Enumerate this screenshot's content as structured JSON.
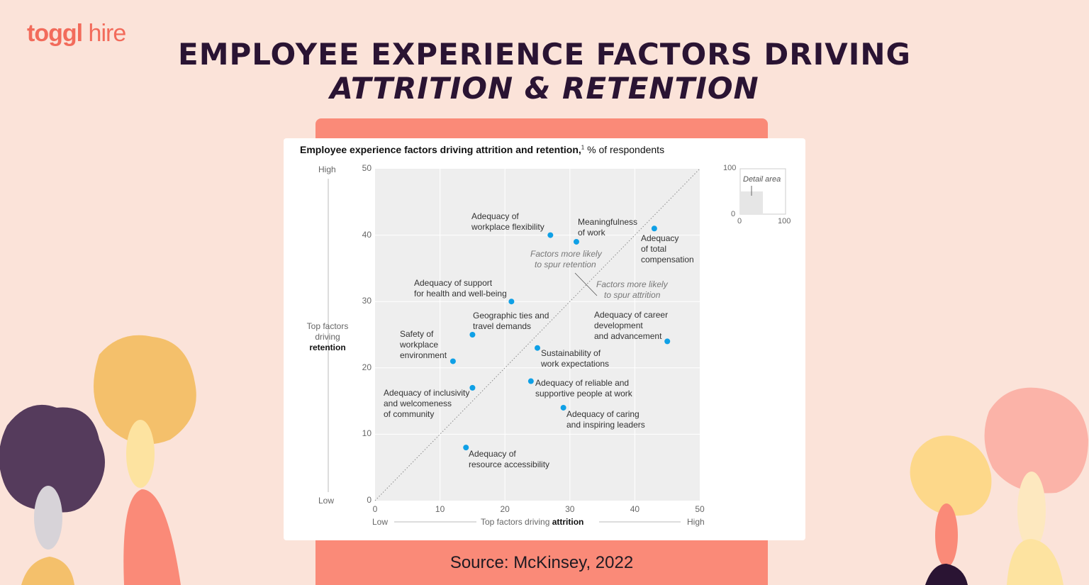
{
  "logo": {
    "brand": "toggl",
    "product": "hire",
    "color": "#f26b5b"
  },
  "title": {
    "line1": "EMPLOYEE EXPERIENCE FACTORS DRIVING",
    "line2": "ATTRITION & RETENTION"
  },
  "source": "Source: McKinsey, 2022",
  "chart_data": {
    "type": "scatter",
    "title": "Employee experience factors driving attrition and retention,",
    "footnote_mark": "1",
    "subtitle": "% of respondents",
    "xlim": [
      0,
      50
    ],
    "ylim": [
      0,
      50
    ],
    "xticks": [
      "0",
      "10",
      "20",
      "30",
      "40",
      "50"
    ],
    "yticks": [
      "0",
      "10",
      "20",
      "30",
      "40",
      "50"
    ],
    "xlabel": {
      "low": "Low",
      "prefix": "Top factors driving ",
      "bold": "attrition",
      "high": "High"
    },
    "ylabel": {
      "high": "High",
      "line1": "Top factors",
      "line2": "driving",
      "bold": "retention",
      "low": "Low"
    },
    "grid": true,
    "diagonal": "y = x dotted",
    "point_color": "#0fa0e6",
    "annotations": {
      "retention": [
        "Factors more likely",
        "to spur retention"
      ],
      "attrition": [
        "Factors more likely",
        "to spur attrition"
      ]
    },
    "points": [
      {
        "x": 27,
        "y": 40,
        "label": [
          "Adequacy of",
          "workplace flexibility"
        ]
      },
      {
        "x": 31,
        "y": 39,
        "label": [
          "Meaningfulness",
          "of work"
        ]
      },
      {
        "x": 43,
        "y": 41,
        "label": [
          "Adequacy",
          "of total",
          "compensation"
        ]
      },
      {
        "x": 21,
        "y": 30,
        "label": [
          "Adequacy of support",
          "for health and well-being"
        ]
      },
      {
        "x": 15,
        "y": 25,
        "label": [
          "Geographic ties and",
          "travel demands"
        ]
      },
      {
        "x": 45,
        "y": 24,
        "label": [
          "Adequacy of career",
          "development",
          "and advancement"
        ]
      },
      {
        "x": 25,
        "y": 23,
        "label": [
          "Sustainability of",
          "work expectations"
        ]
      },
      {
        "x": 12,
        "y": 21,
        "label": [
          "Safety of",
          "workplace",
          "environment"
        ]
      },
      {
        "x": 15,
        "y": 17,
        "label": [
          "Adequacy of inclusivity",
          "and welcomeness",
          "of community"
        ]
      },
      {
        "x": 24,
        "y": 18,
        "label": [
          "Adequacy of reliable and",
          "supportive people at work"
        ]
      },
      {
        "x": 29,
        "y": 14,
        "label": [
          "Adequacy of caring",
          "and inspiring leaders"
        ]
      },
      {
        "x": 14,
        "y": 8,
        "label": [
          "Adequacy of",
          "resource accessibility"
        ]
      }
    ],
    "inset": {
      "label": "Detail area",
      "ticks": [
        "0",
        "100"
      ],
      "ytop": "100",
      "detail_fraction": 0.5
    }
  }
}
